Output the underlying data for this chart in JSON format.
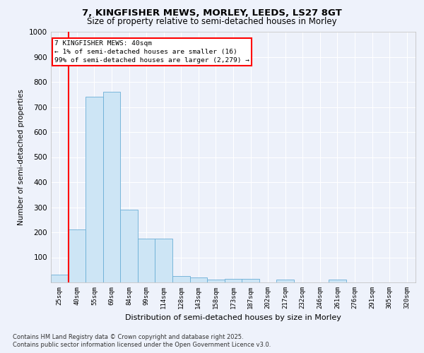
{
  "title1": "7, KINGFISHER MEWS, MORLEY, LEEDS, LS27 8GT",
  "title2": "Size of property relative to semi-detached houses in Morley",
  "xlabel": "Distribution of semi-detached houses by size in Morley",
  "ylabel": "Number of semi-detached properties",
  "categories": [
    "25sqm",
    "40sqm",
    "55sqm",
    "69sqm",
    "84sqm",
    "99sqm",
    "114sqm",
    "128sqm",
    "143sqm",
    "158sqm",
    "173sqm",
    "187sqm",
    "202sqm",
    "217sqm",
    "232sqm",
    "246sqm",
    "261sqm",
    "276sqm",
    "291sqm",
    "305sqm",
    "320sqm"
  ],
  "values": [
    30,
    210,
    740,
    760,
    290,
    175,
    175,
    25,
    20,
    10,
    15,
    15,
    0,
    10,
    0,
    0,
    10,
    0,
    0,
    0,
    0
  ],
  "bar_color": "#cde5f5",
  "bar_edge_color": "#6aaed6",
  "red_line_index": 1,
  "annotation_title": "7 KINGFISHER MEWS: 40sqm",
  "annotation_line1": "← 1% of semi-detached houses are smaller (16)",
  "annotation_line2": "99% of semi-detached houses are larger (2,279) →",
  "ylim": [
    0,
    1000
  ],
  "yticks": [
    0,
    100,
    200,
    300,
    400,
    500,
    600,
    700,
    800,
    900,
    1000
  ],
  "footnote1": "Contains HM Land Registry data © Crown copyright and database right 2025.",
  "footnote2": "Contains public sector information licensed under the Open Government Licence v3.0.",
  "bg_color": "#eef2fb",
  "plot_bg_color": "#edf1fa"
}
